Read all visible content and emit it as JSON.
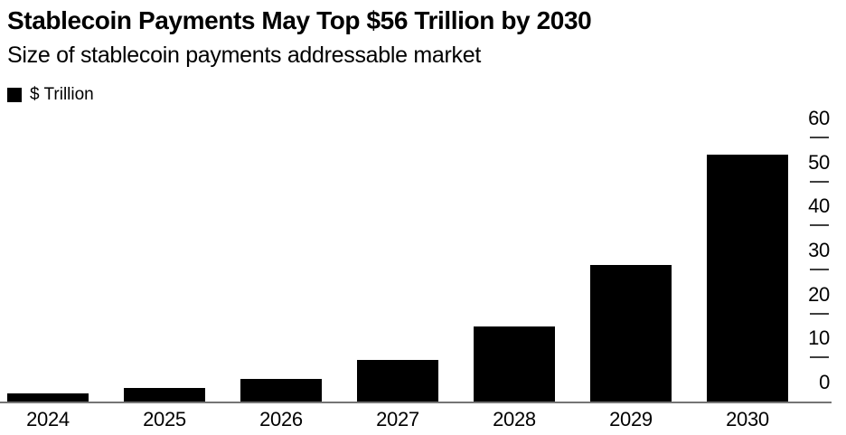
{
  "header": {
    "title": "Stablecoin Payments May Top $56 Trillion by 2030",
    "subtitle": "Size of stablecoin payments addressable market"
  },
  "legend": {
    "label": "$ Trillion",
    "swatch_color": "#000000"
  },
  "chart_data": {
    "type": "bar",
    "title": "Stablecoin Payments May Top $56 Trillion by 2030",
    "subtitle": "Size of stablecoin payments addressable market",
    "series_name": "$ Trillion",
    "categories": [
      "2024",
      "2025",
      "2026",
      "2027",
      "2028",
      "2029",
      "2030"
    ],
    "values": [
      1.8,
      3,
      5.2,
      9.5,
      17,
      31,
      56
    ],
    "xlabel": "",
    "ylabel": "$ Trillion",
    "ylim": [
      0,
      60
    ],
    "yticks": [
      0,
      10,
      20,
      30,
      40,
      50,
      60
    ],
    "y_axis_side": "right",
    "legend_position": "top-left",
    "grid": false,
    "bar_color": "#000000"
  },
  "colors": {
    "background": "#ffffff",
    "bar": "#000000",
    "text": "#000000",
    "baseline": "#757575",
    "tick": "#3f3f3f"
  }
}
